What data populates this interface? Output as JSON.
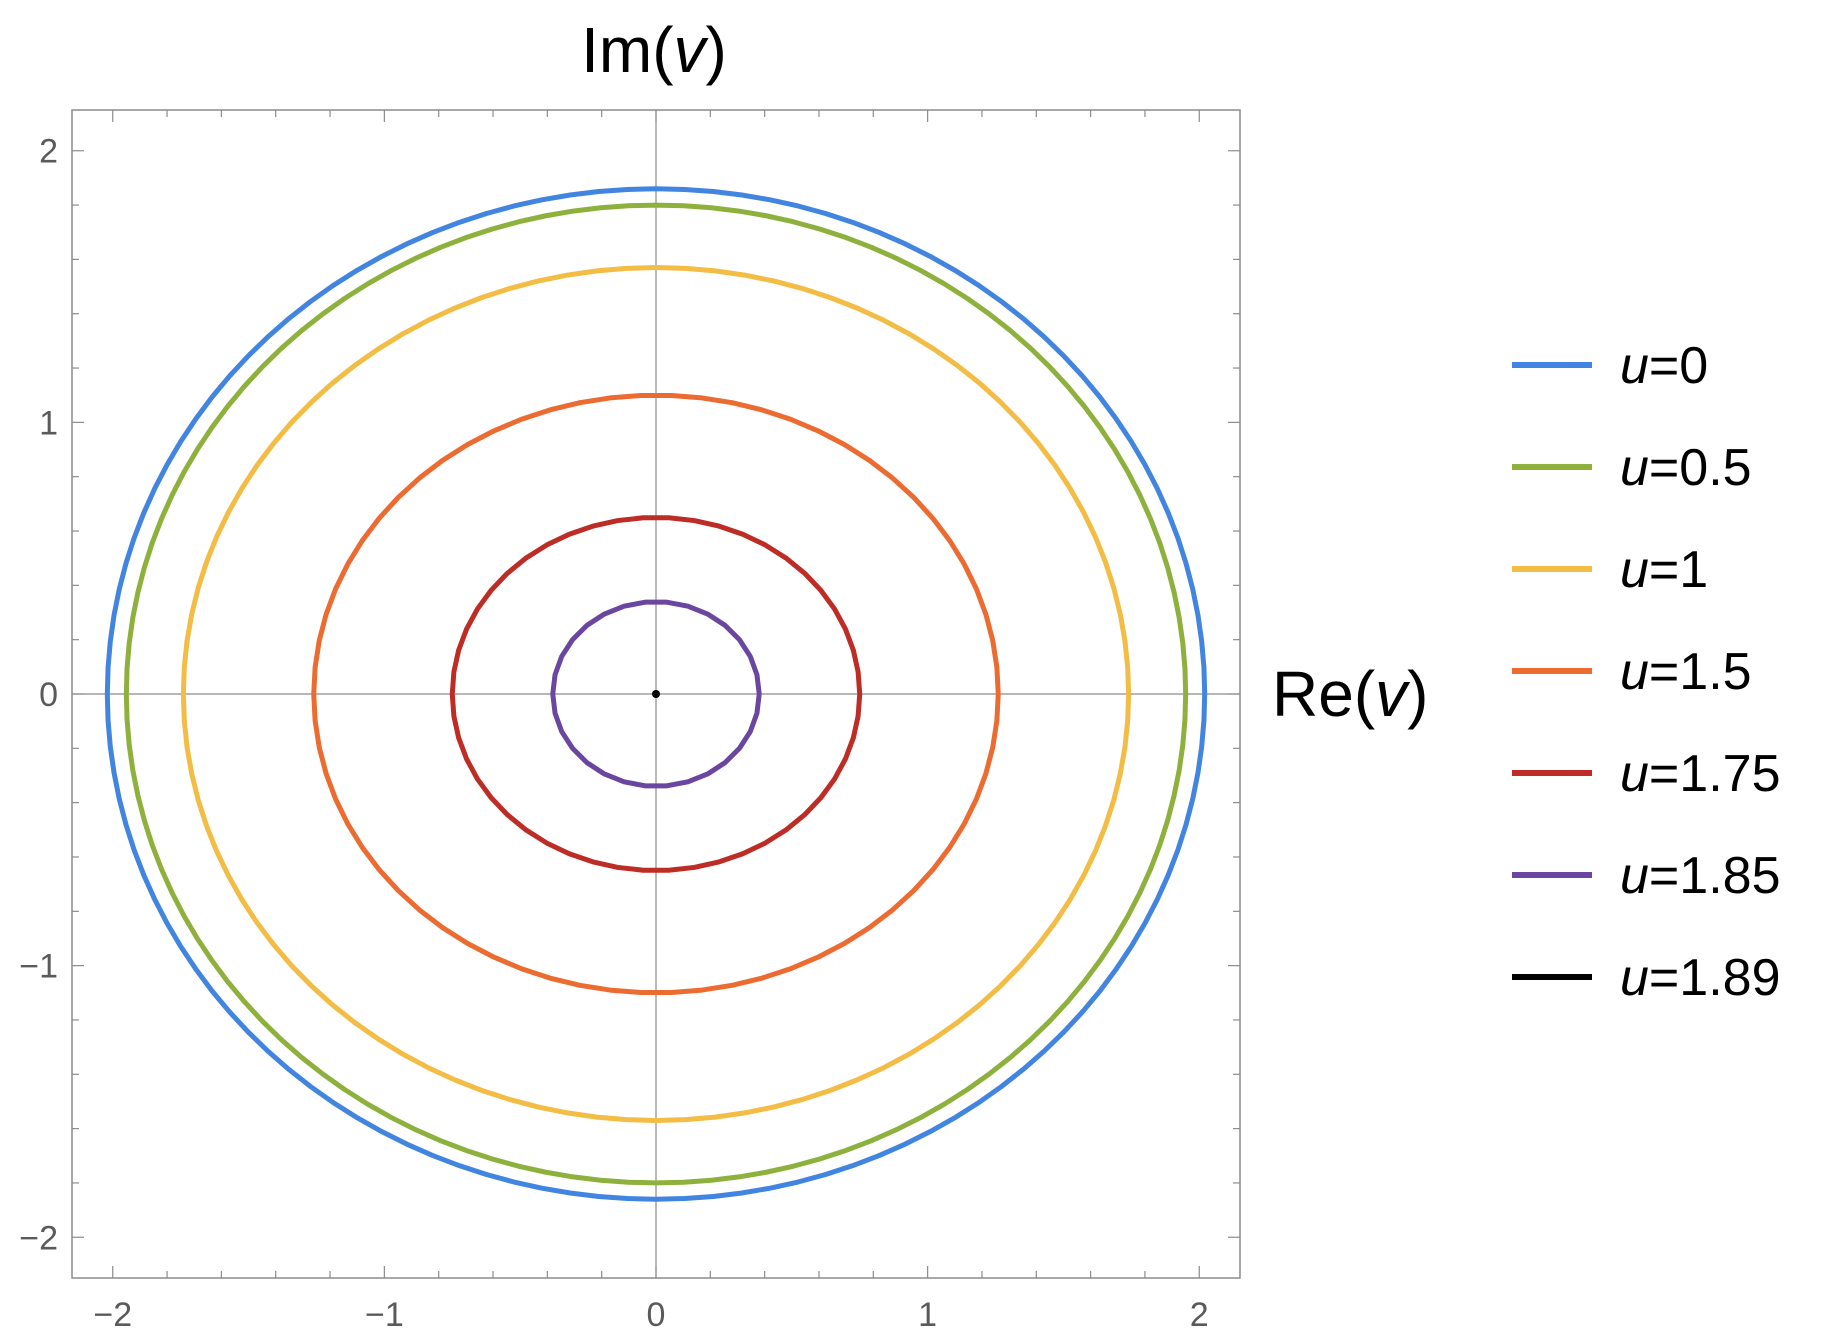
{
  "chart_data": {
    "type": "line",
    "title": "",
    "xlabel_prefix": "Re(",
    "xlabel_var": "v",
    "xlabel_suffix": ")",
    "ylabel_prefix": "Im(",
    "ylabel_var": "v",
    "ylabel_suffix": ")",
    "xlim": [
      -2.15,
      2.15
    ],
    "ylim": [
      -2.15,
      2.15
    ],
    "xticks": [
      -2,
      -1,
      0,
      1,
      2
    ],
    "yticks": [
      -2,
      -1,
      0,
      1,
      2
    ],
    "xtick_labels": [
      "−2",
      "−1",
      "0",
      "1",
      "2"
    ],
    "ytick_labels": [
      "−2",
      "−1",
      "0",
      "1",
      "2"
    ],
    "minor_tick_step": 0.2,
    "axes_through_origin": true,
    "grid": false,
    "legend_position": "right",
    "series": [
      {
        "name_var": "u",
        "name_value": "=0",
        "color": "#4185e0",
        "rx": 2.02,
        "ry": 1.86,
        "points": 120
      },
      {
        "name_var": "u",
        "name_value": "=0.5",
        "color": "#8db13c",
        "rx": 1.95,
        "ry": 1.8,
        "points": 120
      },
      {
        "name_var": "u",
        "name_value": "=1",
        "color": "#f3bc45",
        "rx": 1.74,
        "ry": 1.57,
        "points": 100
      },
      {
        "name_var": "u",
        "name_value": "=1.5",
        "color": "#eb6b31",
        "rx": 1.26,
        "ry": 1.1,
        "points": 70
      },
      {
        "name_var": "u",
        "name_value": "=1.75",
        "color": "#bd2c25",
        "rx": 0.75,
        "ry": 0.65,
        "points": 50
      },
      {
        "name_var": "u",
        "name_value": "=1.85",
        "color": "#6a46a0",
        "rx": 0.38,
        "ry": 0.34,
        "points": 30
      },
      {
        "name_var": "u",
        "name_value": "=1.89",
        "color": "#000000",
        "rx": 0.005,
        "ry": 0.005,
        "points": 12
      }
    ]
  }
}
